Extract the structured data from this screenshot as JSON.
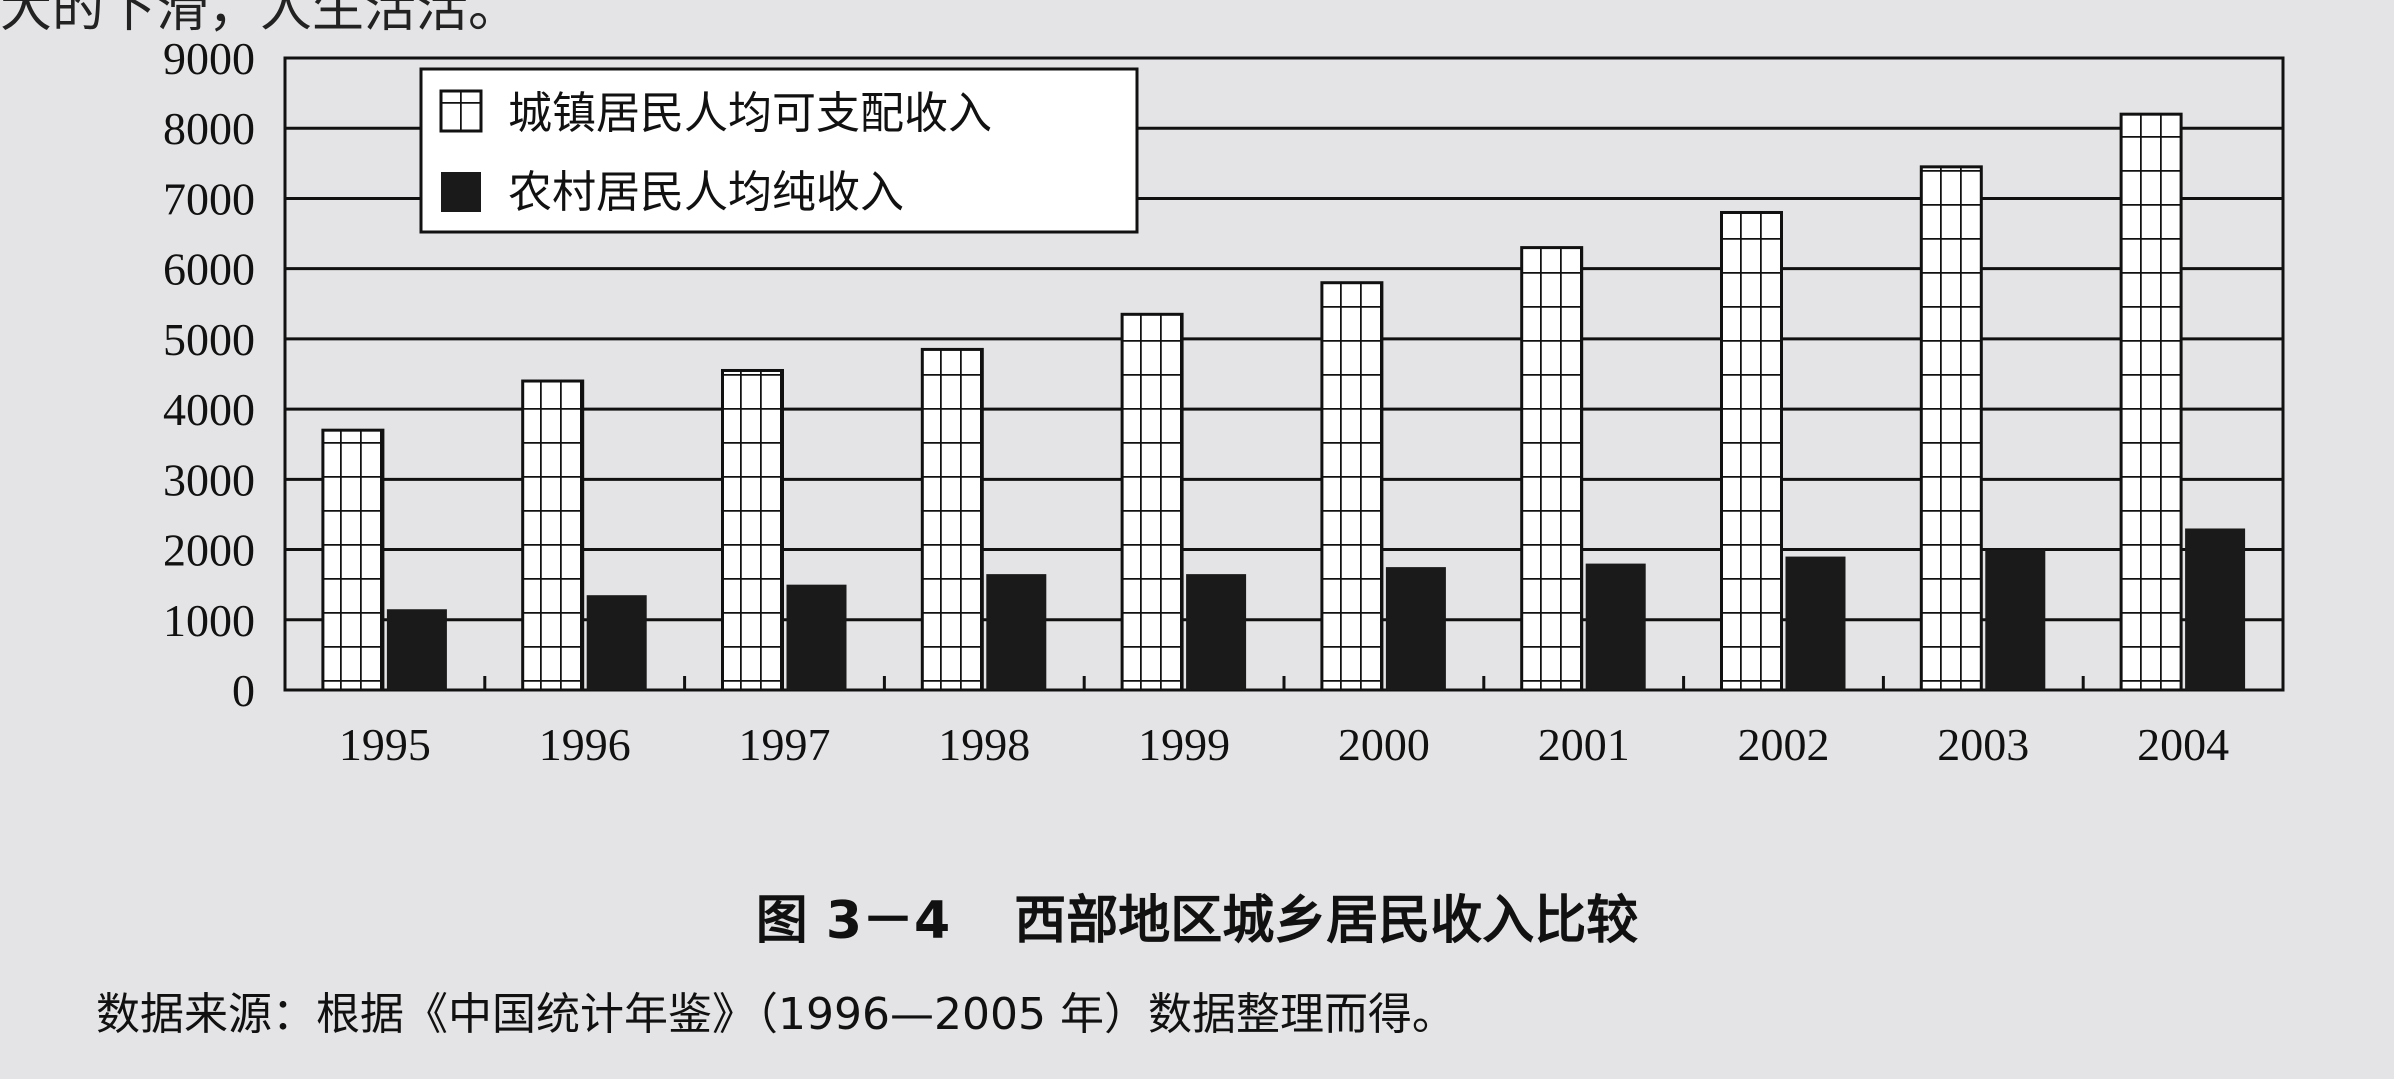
{
  "top_fragment": "大的下滑，人生活活。",
  "figure": {
    "caption_number": "图 3－4",
    "caption_title": "西部地区城乡居民收入比较",
    "source": "数据来源：根据《中国统计年鉴》（1996—2005 年）数据整理而得。"
  },
  "chart_data": {
    "type": "bar",
    "categories": [
      "1995",
      "1996",
      "1997",
      "1998",
      "1999",
      "2000",
      "2001",
      "2002",
      "2003",
      "2004"
    ],
    "series": [
      {
        "name": "城镇居民人均可支配收入",
        "pattern": "grid",
        "color": "#ffffff",
        "values": [
          3700,
          4400,
          4550,
          4850,
          5350,
          5800,
          6300,
          6800,
          7450,
          8200
        ]
      },
      {
        "name": "农村居民人均纯收入",
        "pattern": "solid",
        "color": "#1a1a1a",
        "values": [
          1150,
          1350,
          1500,
          1650,
          1650,
          1750,
          1800,
          1900,
          2000,
          2300
        ]
      }
    ],
    "ylim": [
      0,
      9000
    ],
    "yticks": [
      0,
      1000,
      2000,
      3000,
      4000,
      5000,
      6000,
      7000,
      8000,
      9000
    ],
    "grid": true,
    "legend": "top-left",
    "title": "",
    "xlabel": "",
    "ylabel": ""
  }
}
